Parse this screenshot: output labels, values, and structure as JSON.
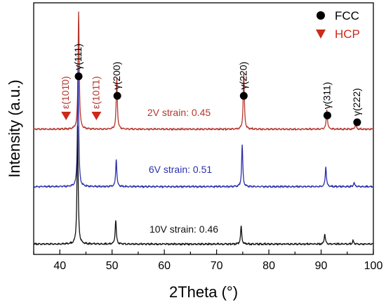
{
  "chart_data": {
    "type": "line",
    "xlabel": "2Theta (°)",
    "ylabel": "Intensity (a.u.)",
    "xlim": [
      35,
      100
    ],
    "xticks": [
      "40",
      "50",
      "60",
      "70",
      "80",
      "90",
      "100"
    ],
    "yticks_shown": false,
    "legend": {
      "placement": "top-right",
      "entries": [
        {
          "label": "FCC",
          "marker": "circle",
          "color": "#000000"
        },
        {
          "label": "HCP",
          "marker": "triangle-down",
          "color": "#cc2a1a"
        }
      ]
    },
    "series": [
      {
        "name": "2V strain: 0.45",
        "color": "#b5362d",
        "baseline": 1.0,
        "peaks": [
          [
            43.6,
            2.05
          ],
          [
            50.9,
            0.88
          ],
          [
            75.2,
            0.98
          ],
          [
            91.1,
            0.35
          ],
          [
            96.6,
            0.1
          ]
        ]
      },
      {
        "name": "6V strain: 0.51",
        "color": "#2b2fae",
        "baseline": 0.0,
        "peaks": [
          [
            43.5,
            2.05
          ],
          [
            50.8,
            0.48
          ],
          [
            74.9,
            0.73
          ],
          [
            90.9,
            0.35
          ],
          [
            96.3,
            0.07
          ]
        ]
      },
      {
        "name": "10V strain: 0.46",
        "color": "#111111",
        "baseline": -1.0,
        "peaks": [
          [
            43.4,
            2.05
          ],
          [
            50.7,
            0.42
          ],
          [
            74.7,
            0.31
          ],
          [
            90.7,
            0.18
          ],
          [
            96.1,
            0.06
          ]
        ]
      }
    ],
    "fcc_peak_labels": [
      {
        "x": 43.6,
        "y": 1.92,
        "label": "γ(111)"
      },
      {
        "x": 51.0,
        "y": 1.58,
        "label": "γ(200)"
      },
      {
        "x": 75.2,
        "y": 1.58,
        "label": "γ(220)"
      },
      {
        "x": 91.2,
        "y": 1.24,
        "label": "γ(311)"
      },
      {
        "x": 96.9,
        "y": 1.12,
        "label": "γ(222)"
      }
    ],
    "hcp_peak_labels": [
      {
        "x": 41.2,
        "y": 1.23,
        "label": "ε(101̄0)"
      },
      {
        "x": 47.0,
        "y": 1.23,
        "label": "ε(101̄1)"
      }
    ]
  }
}
